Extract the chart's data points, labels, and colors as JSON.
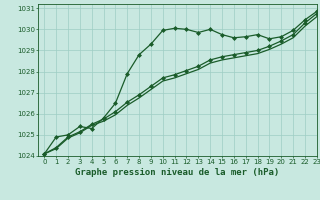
{
  "title": "Graphe pression niveau de la mer (hPa)",
  "background_color": "#c8e8e0",
  "plot_bg_color": "#c8e8e0",
  "grid_color": "#9ecec4",
  "line_color": "#1a5c2a",
  "xlim": [
    -0.5,
    23
  ],
  "ylim": [
    1024,
    1031.2
  ],
  "xticks": [
    0,
    1,
    2,
    3,
    4,
    5,
    6,
    7,
    8,
    9,
    10,
    11,
    12,
    13,
    14,
    15,
    16,
    17,
    18,
    19,
    20,
    21,
    22,
    23
  ],
  "yticks": [
    1024,
    1025,
    1026,
    1027,
    1028,
    1029,
    1030,
    1031
  ],
  "series1_x": [
    0,
    1,
    2,
    3,
    4,
    5,
    6,
    7,
    8,
    9,
    10,
    11,
    12,
    13,
    14,
    15,
    16,
    17,
    18,
    19,
    20,
    21,
    22,
    23
  ],
  "series1_y": [
    1024.1,
    1024.9,
    1025.0,
    1025.4,
    1025.3,
    1025.8,
    1026.5,
    1027.9,
    1028.8,
    1029.3,
    1029.95,
    1030.05,
    1030.0,
    1029.85,
    1030.0,
    1029.75,
    1029.6,
    1029.65,
    1029.75,
    1029.55,
    1029.65,
    1029.95,
    1030.45,
    1030.85
  ],
  "series2_x": [
    0,
    1,
    2,
    3,
    4,
    5,
    6,
    7,
    8,
    9,
    10,
    11,
    12,
    13,
    14,
    15,
    16,
    17,
    18,
    19,
    20,
    21,
    22,
    23
  ],
  "series2_y": [
    1024.1,
    1024.4,
    1024.9,
    1025.15,
    1025.5,
    1025.75,
    1026.1,
    1026.55,
    1026.9,
    1027.3,
    1027.7,
    1027.85,
    1028.05,
    1028.25,
    1028.55,
    1028.7,
    1028.8,
    1028.9,
    1029.0,
    1029.2,
    1029.45,
    1029.75,
    1030.3,
    1030.75
  ],
  "series3_x": [
    0,
    1,
    2,
    3,
    4,
    5,
    6,
    7,
    8,
    9,
    10,
    11,
    12,
    13,
    14,
    15,
    16,
    17,
    18,
    19,
    20,
    21,
    22,
    23
  ],
  "series3_y": [
    1024.1,
    1024.35,
    1024.85,
    1025.1,
    1025.45,
    1025.65,
    1025.95,
    1026.4,
    1026.75,
    1027.15,
    1027.55,
    1027.7,
    1027.9,
    1028.1,
    1028.4,
    1028.55,
    1028.65,
    1028.75,
    1028.85,
    1029.05,
    1029.3,
    1029.6,
    1030.15,
    1030.6
  ],
  "marker_style": "D",
  "marker_size": 2.0,
  "line_width": 0.9,
  "title_fontsize": 6.5,
  "tick_fontsize": 5.0
}
